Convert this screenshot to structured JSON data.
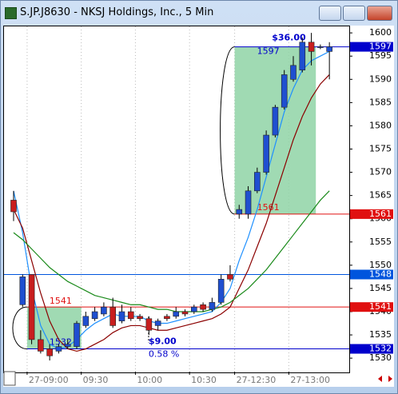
{
  "window": {
    "title": "S.JP.J8630 - NKSJ Holdings, Inc., 5 Min"
  },
  "chart_data": {
    "type": "candlestick",
    "categories": [
      null,
      null,
      "27-09:00",
      null,
      null,
      null,
      null,
      null,
      "09:30",
      null,
      null,
      null,
      null,
      null,
      "10:00",
      null,
      null,
      null,
      null,
      null,
      "10:30",
      null,
      null,
      null,
      null,
      "27-12:30",
      null,
      null,
      null,
      null,
      null,
      "27-13:00",
      null,
      null,
      null,
      null
    ],
    "open": [
      1564,
      1541.5,
      1548,
      1534,
      1532,
      1531.5,
      1532.5,
      1532.5,
      1537,
      1538.5,
      1539.5,
      1541,
      1538,
      1540,
      1539,
      1538.5,
      1537,
      1539,
      1539,
      1540,
      1540,
      1541.5,
      1540.5,
      1542,
      1548,
      1561,
      1561,
      1566,
      1570,
      1578,
      1584,
      1590,
      1592,
      1598,
      1597,
      1596
    ],
    "high": [
      1566,
      1548,
      1548,
      1536,
      1533,
      1533,
      1534,
      1538,
      1540,
      1541,
      1542,
      1543,
      1541.5,
      1541,
      1539.5,
      1539,
      1538.5,
      1539.5,
      1541,
      1540.5,
      1541.5,
      1542,
      1543,
      1548,
      1550,
      1563,
      1567,
      1571,
      1579,
      1584.5,
      1592,
      1595,
      1599,
      1600,
      1597.5,
      1598
    ],
    "low": [
      1559.5,
      1541,
      1533,
      1531,
      1529.5,
      1531,
      1532,
      1532,
      1536.5,
      1538,
      1539,
      1536.5,
      1537.5,
      1538,
      1538,
      1535,
      1536,
      1538,
      1538.5,
      1539,
      1539.5,
      1540,
      1540,
      1541.5,
      1546.5,
      1560,
      1560,
      1565.5,
      1569.5,
      1577.5,
      1583.5,
      1589.5,
      1591.5,
      1593,
      1596.5,
      1590
    ],
    "close": [
      1561.5,
      1547.5,
      1534,
      1531.5,
      1530.5,
      1532.5,
      1533,
      1537.5,
      1539,
      1540,
      1541,
      1537,
      1540,
      1538.5,
      1538.5,
      1536,
      1538,
      1538.5,
      1540,
      1539.5,
      1541,
      1540.5,
      1542,
      1547,
      1547,
      1562,
      1566,
      1570,
      1578,
      1584,
      1591,
      1593,
      1598,
      1596,
      1597,
      1597
    ],
    "up_color": "#1f4fd0",
    "down_color": "#c81e1e",
    "series": [
      {
        "color": "#1e90ff",
        "values": [
          1566,
          1557,
          1545,
          1537,
          1533,
          1532,
          1532.5,
          1534,
          1536,
          1537.5,
          1538.5,
          1539.5,
          1539,
          1539,
          1539,
          1538,
          1537.5,
          1537.5,
          1538,
          1538.5,
          1539,
          1539.5,
          1540,
          1542,
          1545,
          1551,
          1556,
          1562,
          1569,
          1576,
          1583,
          1588,
          1592,
          1594,
          1595,
          1596
        ]
      },
      {
        "color": "#8b0000",
        "values": [
          1562,
          1558,
          1551,
          1544,
          1538,
          1534,
          1532,
          1531.5,
          1532,
          1533,
          1534,
          1535.5,
          1536.5,
          1537,
          1537,
          1536.5,
          1536,
          1536,
          1536.5,
          1537,
          1537.5,
          1538,
          1538.5,
          1539.5,
          1541,
          1545,
          1549,
          1554,
          1559,
          1565,
          1571,
          1577,
          1582,
          1586,
          1589,
          1591
        ]
      },
      {
        "color": "#1a8a1a",
        "values": [
          1557,
          1555.5,
          1553.5,
          1551.5,
          1549.5,
          1548,
          1546.5,
          1545.5,
          1544.5,
          1543.5,
          1543,
          1542.5,
          1542,
          1541.5,
          1541.5,
          1541,
          1540.5,
          1540.5,
          1540,
          1540,
          1540,
          1540,
          1540.5,
          1541,
          1542,
          1543.5,
          1545,
          1547,
          1549,
          1551.5,
          1554,
          1556.5,
          1559,
          1561.5,
          1564,
          1566
        ]
      }
    ],
    "ylim": [
      1527.1,
      1601.4
    ],
    "yticks": [
      1530,
      1535,
      1540,
      1545,
      1550,
      1555,
      1560,
      1565,
      1570,
      1575,
      1580,
      1585,
      1590,
      1595,
      1600
    ],
    "levels": [
      {
        "value": 1597,
        "color": "#0000cc"
      },
      {
        "value": 1561,
        "color": "#e01010"
      },
      {
        "value": 1548,
        "color": "#0055dd",
        "full_line": true
      },
      {
        "value": 1541,
        "color": "#e01010"
      },
      {
        "value": 1532,
        "color": "#0000cc"
      }
    ],
    "measures": [
      {
        "start": 2,
        "end": 7,
        "high": 1541,
        "low": 1532,
        "high_color": "#e01010",
        "low_color": "#0000cc",
        "change_label": "$9.00",
        "pct_label": "0.58 %"
      },
      {
        "start": 25,
        "end": 33,
        "high": 1597,
        "low": 1561,
        "high_color": "#0000cc",
        "low_color": "#e01010",
        "change_label": "$36.00"
      }
    ]
  }
}
